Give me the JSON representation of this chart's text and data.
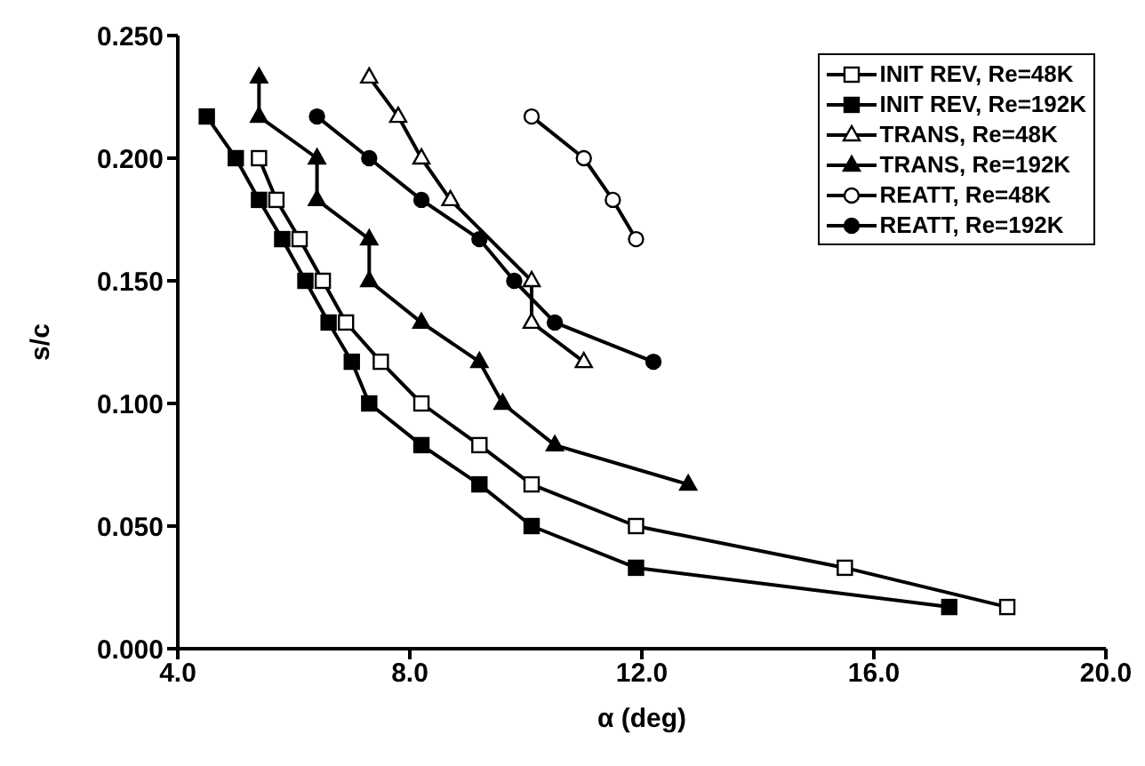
{
  "chart_data": {
    "type": "line",
    "xlabel": "α (deg)",
    "ylabel": "s/c",
    "xlim": [
      4,
      20
    ],
    "xticks": [
      {
        "value": 4,
        "label": "4.0"
      },
      {
        "value": 8,
        "label": "8.0"
      },
      {
        "value": 12,
        "label": "12.0"
      },
      {
        "value": 16,
        "label": "16.0"
      },
      {
        "value": 20,
        "label": "20.0"
      }
    ],
    "ylim": [
      0,
      0.25
    ],
    "yticks": [
      {
        "value": 0,
        "label": "0.000"
      },
      {
        "value": 0.05,
        "label": "0.050"
      },
      {
        "value": 0.1,
        "label": "0.100"
      },
      {
        "value": 0.15,
        "label": "0.150"
      },
      {
        "value": 0.2,
        "label": "0.200"
      },
      {
        "value": 0.25,
        "label": "0.250"
      }
    ],
    "grid": false,
    "legend": "top right",
    "line_style": "solid",
    "series": [
      {
        "name": "INIT REV, Re=48K",
        "color": "#000000",
        "marker": "square",
        "x": [
          5.4,
          5.7,
          6.1,
          6.5,
          6.9,
          7.5,
          8.2,
          9.2,
          10.1,
          11.9,
          15.5,
          18.3
        ],
        "values": [
          0.2,
          0.183,
          0.167,
          0.15,
          0.133,
          0.117,
          0.1,
          0.083,
          0.067,
          0.05,
          0.033,
          0.017
        ]
      },
      {
        "name": "INIT REV, Re=192K",
        "color": "#000000",
        "marker": "square",
        "x": [
          4.5,
          5.0,
          5.4,
          5.8,
          6.2,
          6.6,
          7.0,
          7.3,
          8.2,
          9.2,
          10.1,
          11.9,
          17.3
        ],
        "values": [
          0.217,
          0.2,
          0.183,
          0.167,
          0.15,
          0.133,
          0.117,
          0.1,
          0.083,
          0.067,
          0.05,
          0.033,
          0.017
        ]
      },
      {
        "name": "TRANS, Re=48K",
        "color": "#000000",
        "marker": "triangle",
        "x": [
          7.3,
          7.8,
          8.2,
          8.7,
          10.1,
          10.1,
          11.0
        ],
        "values": [
          0.233,
          0.217,
          0.2,
          0.183,
          0.15,
          0.133,
          0.117
        ]
      },
      {
        "name": "TRANS, Re=192K",
        "color": "#000000",
        "marker": "triangle",
        "x": [
          5.4,
          5.4,
          6.4,
          6.4,
          7.3,
          7.3,
          8.2,
          9.2,
          9.6,
          10.5,
          12.8
        ],
        "values": [
          0.233,
          0.217,
          0.2,
          0.183,
          0.167,
          0.15,
          0.133,
          0.117,
          0.1,
          0.083,
          0.067
        ]
      },
      {
        "name": "REATT, Re=48K",
        "color": "#000000",
        "marker": "circle",
        "x": [
          10.1,
          11.0,
          11.5,
          11.9
        ],
        "values": [
          0.217,
          0.2,
          0.183,
          0.167
        ]
      },
      {
        "name": "REATT, Re=192K",
        "color": "#000000",
        "marker": "circle",
        "x": [
          6.4,
          7.3,
          8.2,
          9.2,
          9.8,
          10.5,
          12.2
        ],
        "values": [
          0.217,
          0.2,
          0.183,
          0.167,
          0.15,
          0.133,
          0.117
        ]
      }
    ]
  }
}
